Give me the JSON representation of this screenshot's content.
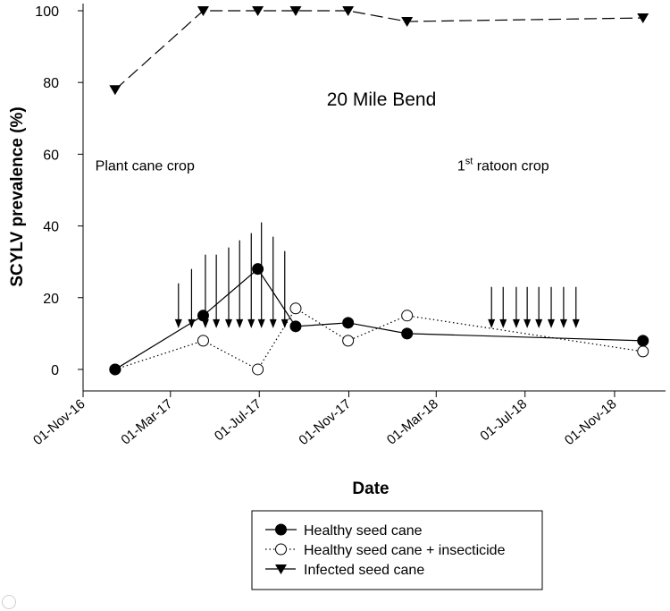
{
  "chart_data": {
    "type": "line",
    "title": "20 Mile Bend",
    "xlabel": "Date",
    "ylabel": "SCYLV prevalence (%)",
    "x_ticks": [
      "01-Nov-16",
      "01-Mar-17",
      "01-Jul-17",
      "01-Nov-17",
      "01-Mar-18",
      "01-Jul-18",
      "01-Nov-18"
    ],
    "y_ticks": [
      0,
      20,
      40,
      60,
      80,
      100
    ],
    "ylim": [
      -6,
      102
    ],
    "xlim": [
      "2016-11-01",
      "2019-01-10"
    ],
    "grid": false,
    "legend_position": "bottom-center",
    "annotations": [
      {
        "text": "Plant cane crop",
        "x": "2017-01-25",
        "y": 57
      },
      {
        "text": "1",
        "sup": "st",
        "rest": " ratoon crop",
        "x": "2018-06-01",
        "y": 57
      }
    ],
    "series": [
      {
        "name": "Healthy seed cane",
        "marker": "circle-filled",
        "line": "solid",
        "color": "#000000",
        "x": [
          "2016-12-15",
          "2017-04-15",
          "2017-06-29",
          "2017-08-20",
          "2017-10-31",
          "2018-01-20",
          "2018-12-10"
        ],
        "y": [
          0,
          15,
          28,
          12,
          13,
          10,
          8
        ]
      },
      {
        "name": "Healthy seed cane + insecticide",
        "marker": "circle-open",
        "line": "dotted",
        "color": "#000000",
        "x": [
          "2016-12-15",
          "2017-04-15",
          "2017-06-29",
          "2017-08-20",
          "2017-10-31",
          "2018-01-20",
          "2018-12-10"
        ],
        "y": [
          0,
          8,
          0,
          17,
          8,
          15,
          5
        ]
      },
      {
        "name": "Infected seed cane",
        "marker": "triangle-down-filled",
        "line": "dashed",
        "color": "#000000",
        "x": [
          "2016-12-15",
          "2017-04-15",
          "2017-06-29",
          "2017-08-20",
          "2017-10-31",
          "2018-01-20",
          "2018-12-10"
        ],
        "y": [
          78,
          100,
          100,
          100,
          100,
          97,
          98
        ]
      }
    ],
    "insecticide_applications": [
      {
        "date": "2017-03-12",
        "level": 24
      },
      {
        "date": "2017-03-30",
        "level": 28
      },
      {
        "date": "2017-04-18",
        "level": 32
      },
      {
        "date": "2017-05-03",
        "level": 32
      },
      {
        "date": "2017-05-20",
        "level": 34
      },
      {
        "date": "2017-06-04",
        "level": 36
      },
      {
        "date": "2017-06-20",
        "level": 38
      },
      {
        "date": "2017-07-04",
        "level": 41
      },
      {
        "date": "2017-07-20",
        "level": 37
      },
      {
        "date": "2017-08-05",
        "level": 33
      },
      {
        "date": "2018-05-16",
        "level": 23
      },
      {
        "date": "2018-06-01",
        "level": 23
      },
      {
        "date": "2018-06-19",
        "level": 23
      },
      {
        "date": "2018-07-04",
        "level": 23
      },
      {
        "date": "2018-07-20",
        "level": 23
      },
      {
        "date": "2018-08-06",
        "level": 23
      },
      {
        "date": "2018-08-23",
        "level": 23
      },
      {
        "date": "2018-09-09",
        "level": 23
      }
    ]
  }
}
